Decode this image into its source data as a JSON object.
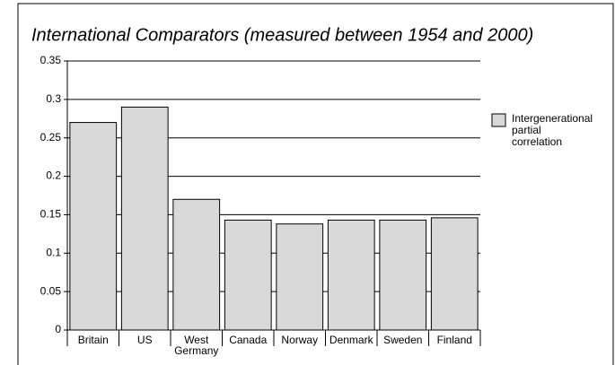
{
  "chart_data": {
    "type": "bar",
    "title": "International Comparators (measured between 1954 and 2000)",
    "categories": [
      "Britain",
      "US",
      "West Germany",
      "Canada",
      "Norway",
      "Denmark",
      "Sweden",
      "Finland"
    ],
    "series": [
      {
        "name": "Intergenerational partial correlation",
        "color": "#d9d9d9",
        "values": [
          0.27,
          0.29,
          0.17,
          0.143,
          0.138,
          0.143,
          0.143,
          0.146
        ]
      }
    ],
    "ylim": [
      0,
      0.35
    ],
    "yticks": [
      0,
      0.05,
      0.1,
      0.15,
      0.2,
      0.25,
      0.3,
      0.35
    ],
    "grid": true,
    "legend": "right"
  }
}
